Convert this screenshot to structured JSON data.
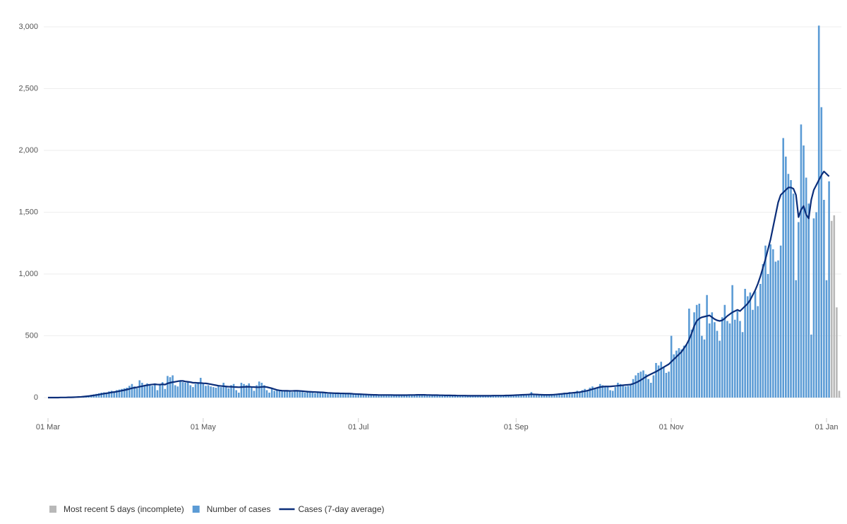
{
  "chart_data": {
    "type": "bar",
    "categories": [
      "01 Mar",
      null,
      null,
      null,
      null,
      null,
      null,
      null,
      null,
      null,
      null,
      null,
      null,
      null,
      null,
      null,
      null,
      null,
      null,
      null,
      null,
      null,
      null,
      null,
      null,
      null,
      null,
      null,
      null,
      null,
      null,
      null,
      null,
      null,
      null,
      null,
      null,
      null,
      null,
      null,
      null,
      null,
      null,
      null,
      null,
      null,
      null,
      null,
      null,
      null,
      null,
      null,
      null,
      null,
      null,
      null,
      null,
      null,
      null,
      null,
      null,
      "01 May",
      null,
      null,
      null,
      null,
      null,
      null,
      null,
      null,
      null,
      null,
      null,
      null,
      null,
      null,
      null,
      null,
      null,
      null,
      null,
      null,
      null,
      null,
      null,
      null,
      null,
      null,
      null,
      null,
      null,
      null,
      null,
      null,
      null,
      null,
      null,
      null,
      null,
      null,
      null,
      null,
      null,
      null,
      null,
      null,
      null,
      null,
      null,
      null,
      null,
      null,
      null,
      null,
      null,
      null,
      null,
      null,
      null,
      null,
      null,
      null,
      "01 Jul",
      null,
      null,
      null,
      null,
      null,
      null,
      null,
      null,
      null,
      null,
      null,
      null,
      null,
      null,
      null,
      null,
      null,
      null,
      null,
      null,
      null,
      null,
      null,
      null,
      null,
      null,
      null,
      null,
      null,
      null,
      null,
      null,
      null,
      null,
      null,
      null,
      null,
      null,
      null,
      null,
      null,
      null,
      null,
      null,
      null,
      null,
      null,
      null,
      null,
      null,
      null,
      null,
      null,
      null,
      null,
      null,
      null,
      null,
      null,
      null,
      null,
      "01 Sep",
      null,
      null,
      null,
      null,
      null,
      null,
      null,
      null,
      null,
      null,
      null,
      null,
      null,
      null,
      null,
      null,
      null,
      null,
      null,
      null,
      null,
      null,
      null,
      null,
      null,
      null,
      null,
      null,
      null,
      null,
      null,
      null,
      null,
      null,
      null,
      null,
      null,
      null,
      null,
      null,
      null,
      null,
      null,
      null,
      null,
      null,
      null,
      null,
      null,
      null,
      null,
      null,
      null,
      null,
      null,
      null,
      null,
      null,
      null,
      null,
      "01 Nov",
      null,
      null,
      null,
      null,
      null,
      null,
      null,
      null,
      null,
      null,
      null,
      null,
      null,
      null,
      null,
      null,
      null,
      null,
      null,
      null,
      null,
      null,
      null,
      null,
      null,
      null,
      null,
      null,
      null,
      null,
      null,
      null,
      null,
      null,
      null,
      null,
      null,
      null,
      null,
      null,
      null,
      null,
      null,
      null,
      null,
      null,
      null,
      null,
      null,
      null,
      null,
      null,
      null,
      null,
      null,
      null,
      null,
      null,
      null,
      null,
      "01 Jan",
      null,
      null,
      null,
      null,
      null
    ],
    "series": [
      {
        "name": "Most recent 5 days (incomplete)",
        "color": "#b8b8b8",
        "values": [
          null,
          null,
          null,
          null,
          null,
          null,
          null,
          null,
          null,
          null,
          null,
          null,
          null,
          null,
          null,
          null,
          null,
          null,
          null,
          null,
          null,
          null,
          null,
          null,
          null,
          null,
          null,
          null,
          null,
          null,
          null,
          null,
          null,
          null,
          null,
          null,
          null,
          null,
          null,
          null,
          null,
          null,
          null,
          null,
          null,
          null,
          null,
          null,
          null,
          null,
          null,
          null,
          null,
          null,
          null,
          null,
          null,
          null,
          null,
          null,
          null,
          null,
          null,
          null,
          null,
          null,
          null,
          null,
          null,
          null,
          null,
          null,
          null,
          null,
          null,
          null,
          null,
          null,
          null,
          null,
          null,
          null,
          null,
          null,
          null,
          null,
          null,
          null,
          null,
          null,
          null,
          null,
          null,
          null,
          null,
          null,
          null,
          null,
          null,
          null,
          null,
          null,
          null,
          null,
          null,
          null,
          null,
          null,
          null,
          null,
          null,
          null,
          null,
          null,
          null,
          null,
          null,
          null,
          null,
          null,
          null,
          null,
          null,
          null,
          null,
          null,
          null,
          null,
          null,
          null,
          null,
          null,
          null,
          null,
          null,
          null,
          null,
          null,
          null,
          null,
          null,
          null,
          null,
          null,
          null,
          null,
          null,
          null,
          null,
          null,
          null,
          null,
          null,
          null,
          null,
          null,
          null,
          null,
          null,
          null,
          null,
          null,
          null,
          null,
          null,
          null,
          null,
          null,
          null,
          null,
          null,
          null,
          null,
          null,
          null,
          null,
          null,
          null,
          null,
          null,
          null,
          null,
          null,
          null,
          null,
          null,
          null,
          null,
          null,
          null,
          null,
          null,
          null,
          null,
          null,
          null,
          null,
          null,
          null,
          null,
          null,
          null,
          null,
          null,
          null,
          null,
          null,
          null,
          null,
          null,
          null,
          null,
          null,
          null,
          null,
          null,
          null,
          null,
          null,
          null,
          null,
          null,
          null,
          null,
          null,
          null,
          null,
          null,
          null,
          null,
          null,
          null,
          null,
          null,
          null,
          null,
          null,
          null,
          null,
          null,
          null,
          null,
          null,
          null,
          null,
          null,
          null,
          null,
          null,
          null,
          null,
          null,
          null,
          null,
          null,
          null,
          null,
          null,
          null,
          null,
          null,
          null,
          null,
          null,
          null,
          null,
          null,
          null,
          null,
          null,
          null,
          null,
          null,
          null,
          null,
          null,
          null,
          null,
          null,
          null,
          null,
          null,
          null,
          null,
          null,
          null,
          null,
          null,
          null,
          null,
          null,
          null,
          null,
          null,
          null,
          null,
          null,
          null,
          null,
          null,
          null,
          null,
          null,
          null,
          null,
          null,
          null,
          null,
          1430,
          1475,
          730,
          55
        ]
      },
      {
        "name": "Number of cases",
        "color": "#5b9bd5",
        "values": [
          0,
          0,
          0,
          1,
          0,
          1,
          2,
          2,
          3,
          4,
          5,
          6,
          8,
          10,
          12,
          15,
          18,
          22,
          26,
          30,
          35,
          40,
          42,
          38,
          50,
          55,
          48,
          60,
          65,
          70,
          75,
          80,
          95,
          110,
          90,
          75,
          140,
          120,
          100,
          115,
          105,
          95,
          115,
          60,
          110,
          125,
          70,
          175,
          165,
          180,
          100,
          90,
          140,
          125,
          120,
          130,
          100,
          85,
          110,
          125,
          160,
          120,
          95,
          100,
          90,
          85,
          80,
          95,
          85,
          120,
          90,
          75,
          100,
          110,
          60,
          40,
          120,
          110,
          100,
          115,
          80,
          55,
          100,
          130,
          120,
          100,
          60,
          40,
          70,
          55,
          60,
          55,
          55,
          50,
          60,
          55,
          45,
          60,
          50,
          55,
          45,
          40,
          55,
          50,
          45,
          35,
          50,
          45,
          40,
          35,
          30,
          40,
          35,
          35,
          30,
          40,
          35,
          30,
          35,
          30,
          25,
          30,
          30,
          25,
          28,
          22,
          20,
          25,
          22,
          20,
          20,
          22,
          18,
          20,
          25,
          20,
          18,
          20,
          22,
          20,
          18,
          20,
          22,
          18,
          20,
          25,
          22,
          20,
          24,
          20,
          22,
          20,
          18,
          20,
          22,
          20,
          18,
          16,
          18,
          20,
          18,
          16,
          15,
          18,
          16,
          14,
          15,
          18,
          16,
          14,
          15,
          14,
          16,
          15,
          18,
          16,
          14,
          15,
          16,
          18,
          15,
          18,
          20,
          22,
          25,
          20,
          18,
          22,
          25,
          28,
          45,
          30,
          25,
          20,
          22,
          18,
          20,
          22,
          25,
          30,
          28,
          35,
          32,
          40,
          38,
          45,
          30,
          35,
          55,
          50,
          60,
          70,
          55,
          80,
          90,
          75,
          85,
          110,
          100,
          95,
          90,
          60,
          55,
          85,
          120,
          110,
          100,
          90,
          95,
          110,
          150,
          180,
          200,
          210,
          220,
          190,
          150,
          120,
          180,
          280,
          260,
          290,
          250,
          200,
          210,
          500,
          350,
          380,
          400,
          390,
          420,
          430,
          720,
          550,
          690,
          750,
          760,
          500,
          470,
          830,
          600,
          690,
          610,
          540,
          460,
          650,
          750,
          620,
          600,
          910,
          630,
          700,
          620,
          530,
          880,
          820,
          850,
          710,
          860,
          740,
          920,
          1080,
          1230,
          1000,
          1240,
          1200,
          1100,
          1110,
          1230,
          2100,
          1950,
          1810,
          1760,
          1650,
          950,
          1420,
          2210,
          2040,
          1780,
          1570,
          510,
          1450,
          1500,
          3010,
          2350,
          1600,
          950,
          1750,
          null,
          null,
          null,
          null
        ]
      },
      {
        "name": "Cases (7-day average)",
        "type": "line",
        "color": "#0b2e7a",
        "values": [
          0,
          0,
          0,
          0,
          0,
          1,
          1,
          1,
          2,
          2,
          3,
          4,
          5,
          6,
          8,
          10,
          12,
          15,
          18,
          21,
          24,
          28,
          32,
          35,
          38,
          42,
          45,
          48,
          52,
          56,
          60,
          65,
          70,
          76,
          80,
          83,
          88,
          92,
          97,
          100,
          104,
          106,
          108,
          106,
          105,
          108,
          105,
          115,
          120,
          125,
          128,
          132,
          135,
          135,
          130,
          128,
          125,
          120,
          120,
          118,
          118,
          116,
          115,
          112,
          108,
          104,
          100,
          96,
          94,
          92,
          90,
          88,
          88,
          86,
          85,
          84,
          85,
          86,
          87,
          88,
          86,
          85,
          84,
          84,
          86,
          88,
          85,
          80,
          75,
          68,
          62,
          58,
          56,
          55,
          55,
          54,
          54,
          55,
          55,
          54,
          52,
          50,
          48,
          47,
          46,
          45,
          44,
          43,
          42,
          40,
          38,
          37,
          36,
          35,
          35,
          34,
          34,
          33,
          33,
          32,
          30,
          29,
          28,
          27,
          26,
          25,
          24,
          23,
          22,
          22,
          21,
          21,
          21,
          21,
          21,
          21,
          20,
          20,
          20,
          20,
          20,
          20,
          21,
          21,
          21,
          22,
          22,
          22,
          22,
          21,
          21,
          20,
          20,
          20,
          19,
          19,
          18,
          18,
          18,
          17,
          17,
          16,
          16,
          16,
          16,
          15,
          15,
          15,
          15,
          15,
          15,
          15,
          15,
          15,
          15,
          16,
          16,
          16,
          16,
          16,
          17,
          17,
          18,
          19,
          20,
          21,
          22,
          23,
          24,
          25,
          27,
          26,
          25,
          24,
          23,
          22,
          22,
          22,
          23,
          24,
          26,
          28,
          30,
          32,
          34,
          36,
          38,
          40,
          42,
          44,
          48,
          52,
          56,
          62,
          68,
          74,
          80,
          85,
          88,
          90,
          90,
          90,
          92,
          94,
          96,
          98,
          100,
          102,
          104,
          106,
          112,
          120,
          130,
          142,
          155,
          168,
          180,
          190,
          200,
          210,
          222,
          234,
          246,
          258,
          270,
          290,
          310,
          330,
          350,
          370,
          400,
          430,
          470,
          520,
          580,
          620,
          640,
          650,
          655,
          660,
          665,
          650,
          635,
          625,
          620,
          625,
          640,
          660,
          675,
          690,
          700,
          710,
          700,
          720,
          740,
          760,
          790,
          830,
          870,
          920,
          980,
          1050,
          1120,
          1200,
          1280,
          1380,
          1480,
          1580,
          1640,
          1660,
          1680,
          1700,
          1700,
          1690,
          1640,
          1460,
          1520,
          1550,
          1480,
          1450,
          1600,
          1680,
          1720,
          1760,
          1800,
          1830,
          1810,
          1790,
          null,
          null,
          null,
          null
        ]
      }
    ],
    "ylim": [
      0,
      3000
    ],
    "yticks": [
      0,
      500,
      {
        "value": 1000,
        "label": "1,000"
      },
      {
        "value": 1500,
        "label": "1,500"
      },
      {
        "value": 2000,
        "label": "2,000"
      },
      {
        "value": 2500,
        "label": "2,500"
      },
      {
        "value": 3000,
        "label": "3,000"
      }
    ],
    "grid": true
  }
}
